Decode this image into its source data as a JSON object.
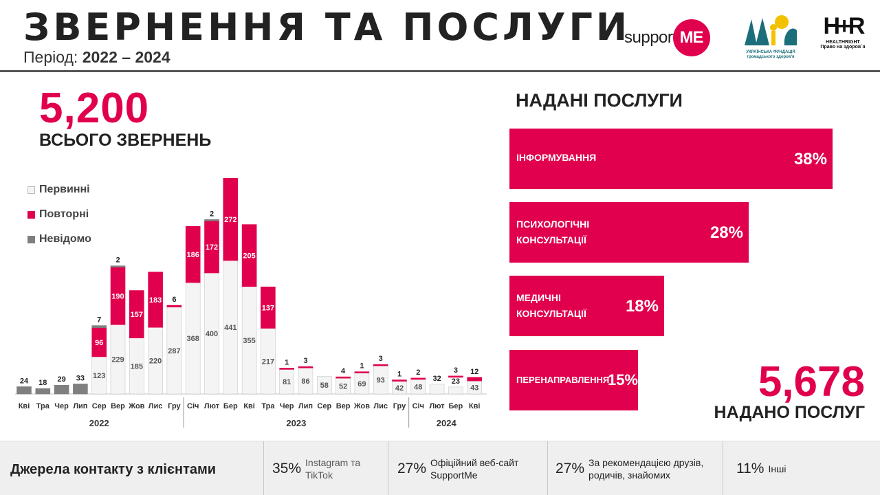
{
  "header": {
    "title": "ЗВЕРНЕННЯ ТА ПОСЛУГИ",
    "period_label": "Період:",
    "period_value": "2022 –  2024"
  },
  "logos": {
    "supportme_text": "support",
    "supportme_mark": "ME",
    "ufph_line1": "УКРАЇНСЬКА ФУНДАЦІЯ",
    "ufph_line2": "громадського здоров'я",
    "healthright_mark": "H+R",
    "healthright_name": "HEALTHRIGHT",
    "healthright_slogan": "Право на здоров`я"
  },
  "summary": {
    "total_requests": "5,200",
    "total_requests_label": "ВСЬОГО ЗВЕРНЕНЬ",
    "services_provided": "5,678",
    "services_provided_label": "НАДАНО ПОСЛУГ"
  },
  "legend": [
    {
      "label": "Первинні",
      "color": "#f4f4f4"
    },
    {
      "label": "Повторні",
      "color": "#e0004d"
    },
    {
      "label": "Невідомо",
      "color": "#7f7f7f"
    }
  ],
  "services": {
    "title": "НАДАНІ ПОСЛУГИ",
    "items": [
      {
        "label_lines": [
          "ІНФОРМУВАННЯ"
        ],
        "percent": "38%",
        "value": 38
      },
      {
        "label_lines": [
          "ПСИХОЛОГІЧНІ",
          "КОНСУЛЬТАЦІЇ"
        ],
        "percent": "28%",
        "value": 28
      },
      {
        "label_lines": [
          "МЕДИЧНІ",
          "КОНСУЛЬТАЦІЇ"
        ],
        "percent": "18%",
        "value": 18
      },
      {
        "label_lines": [
          "ПЕРЕНАПРАВЛЕННЯ"
        ],
        "percent": "15%",
        "value": 15
      }
    ]
  },
  "footer": {
    "title": "Джерела контакту з клієнтами",
    "sources": [
      {
        "pct": "35%",
        "lines": [
          "Instagram та",
          "TikTok"
        ]
      },
      {
        "pct": "27%",
        "lines": [
          "Офіційний веб-сайт",
          "SupportMe"
        ]
      },
      {
        "pct": "27%",
        "lines": [
          "За рекомендацією друзів,",
          "родичів, знайомих"
        ]
      },
      {
        "pct": "11%",
        "lines": [
          "Інші"
        ]
      }
    ]
  },
  "chart_data": {
    "type": "bar",
    "stacked": true,
    "categories": [
      "Кві",
      "Тра",
      "Чер",
      "Лип",
      "Сер",
      "Вер",
      "Жов",
      "Лис",
      "Гру",
      "Січ",
      "Лют",
      "Бер",
      "Кві",
      "Тра",
      "Чер",
      "Лип",
      "Сер",
      "Вер",
      "Жов",
      "Лис",
      "Гру",
      "Січ",
      "Лют",
      "Бер",
      "Кві"
    ],
    "year_groups": [
      {
        "label": "2022",
        "start": 0,
        "end": 8
      },
      {
        "label": "2023",
        "start": 9,
        "end": 20
      },
      {
        "label": "2024",
        "start": 21,
        "end": 24
      }
    ],
    "series": [
      {
        "name": "Первинні",
        "color": "#f4f4f4",
        "values": [
          null,
          null,
          null,
          null,
          123,
          229,
          185,
          220,
          287,
          368,
          400,
          441,
          355,
          217,
          81,
          86,
          58,
          52,
          69,
          93,
          42,
          48,
          32,
          23,
          43
        ]
      },
      {
        "name": "Повторні",
        "color": "#e0004d",
        "values": [
          null,
          null,
          null,
          null,
          96,
          190,
          157,
          183,
          6,
          186,
          172,
          272,
          205,
          137,
          1,
          3,
          null,
          4,
          1,
          3,
          1,
          2,
          null,
          3,
          12
        ]
      },
      {
        "name": "Невідомо",
        "color": "#7f7f7f",
        "values": [
          24,
          18,
          29,
          33,
          7,
          2,
          null,
          null,
          null,
          null,
          2,
          null,
          null,
          null,
          null,
          null,
          null,
          null,
          null,
          null,
          null,
          null,
          null,
          null,
          null
        ]
      }
    ],
    "ylim": [
      0,
      720
    ],
    "grid": false,
    "legend_position": "top-left"
  }
}
